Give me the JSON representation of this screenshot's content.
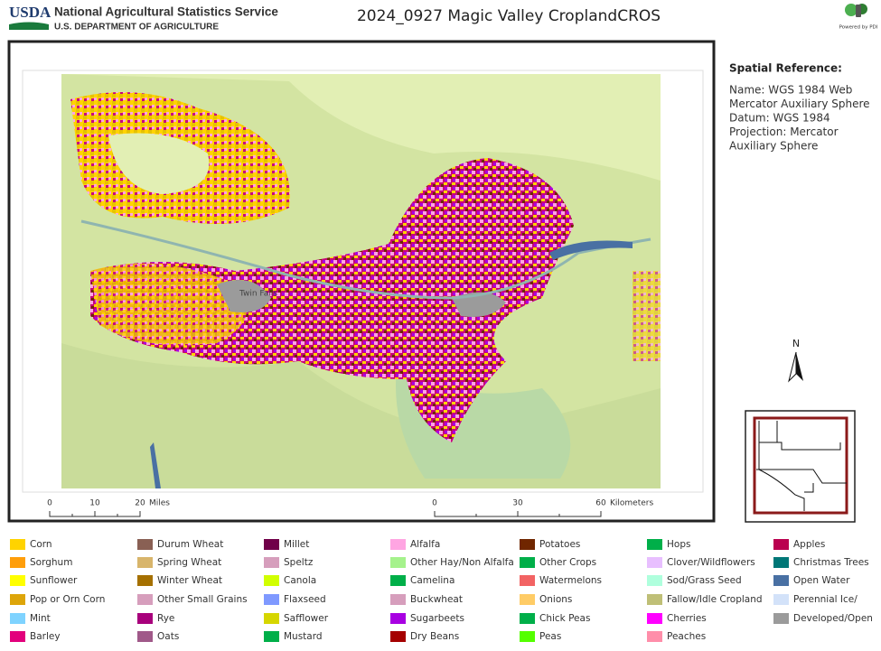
{
  "header": {
    "logo": "USDA",
    "agency": "National Agricultural Statistics Service",
    "department": "U.S. DEPARTMENT OF AGRICULTURE",
    "title": "2024_0927 Magic Valley CroplandCROS",
    "powered_by": "Powered by PDI"
  },
  "spatial_reference": {
    "heading": "Spatial Reference:",
    "lines": [
      "Name: WGS 1984 Web",
      "Mercator Auxiliary Sphere",
      "Datum: WGS 1984",
      "Projection: Mercator",
      "Auxiliary Sphere"
    ]
  },
  "map": {
    "place_label": "Twin Falls",
    "north": "N",
    "scale_miles": {
      "labels": [
        "0",
        "10",
        "20"
      ],
      "unit": "Miles"
    },
    "scale_km": {
      "labels": [
        "0",
        "30",
        "60"
      ],
      "unit": "Kilometers"
    }
  },
  "legend": {
    "columns": [
      [
        {
          "label": "Corn",
          "color": "#ffd300"
        },
        {
          "label": "Sorghum",
          "color": "#ff9e0a"
        },
        {
          "label": "Sunflower",
          "color": "#ffff00"
        },
        {
          "label": "Pop or Orn Corn",
          "color": "#dda50a"
        },
        {
          "label": "Mint",
          "color": "#7fd3ff"
        },
        {
          "label": "Barley",
          "color": "#e2007c"
        }
      ],
      [
        {
          "label": "Durum Wheat",
          "color": "#896054"
        },
        {
          "label": "Spring Wheat",
          "color": "#d8b56b"
        },
        {
          "label": "Winter Wheat",
          "color": "#a57000"
        },
        {
          "label": "Other Small Grains",
          "color": "#d69ebc"
        },
        {
          "label": "Rye",
          "color": "#a8007c"
        },
        {
          "label": "Oats",
          "color": "#a05989"
        }
      ],
      [
        {
          "label": "Millet",
          "color": "#700049"
        },
        {
          "label": "Speltz",
          "color": "#d69ebc"
        },
        {
          "label": "Canola",
          "color": "#d1ff00"
        },
        {
          "label": "Flaxseed",
          "color": "#7f99ff"
        },
        {
          "label": "Safflower",
          "color": "#d6d600"
        },
        {
          "label": "Mustard",
          "color": "#00af49"
        }
      ],
      [
        {
          "label": "Alfalfa",
          "color": "#ffa5e2"
        },
        {
          "label": "Other Hay/Non Alfalfa",
          "color": "#a5f28c"
        },
        {
          "label": "Camelina",
          "color": "#00af49"
        },
        {
          "label": "Buckwheat",
          "color": "#d69ebc"
        },
        {
          "label": "Sugarbeets",
          "color": "#a800e2"
        },
        {
          "label": "Dry Beans",
          "color": "#a50000"
        }
      ],
      [
        {
          "label": "Potatoes",
          "color": "#702600"
        },
        {
          "label": "Other Crops",
          "color": "#00af49"
        },
        {
          "label": "Watermelons",
          "color": "#f26363"
        },
        {
          "label": "Onions",
          "color": "#ffcc66"
        },
        {
          "label": "Chick Peas",
          "color": "#00af49"
        },
        {
          "label": "Peas",
          "color": "#54ff00"
        }
      ],
      [
        {
          "label": "Hops",
          "color": "#00af49"
        },
        {
          "label": "Clover/Wildflowers",
          "color": "#e8bfff"
        },
        {
          "label": "Sod/Grass Seed",
          "color": "#afffdd"
        },
        {
          "label": "Fallow/Idle Cropland",
          "color": "#bfbf77"
        },
        {
          "label": "Cherries",
          "color": "#ff00ff"
        },
        {
          "label": "Peaches",
          "color": "#ff8eaa"
        }
      ],
      [
        {
          "label": "Apples",
          "color": "#ba004f"
        },
        {
          "label": "Christmas Trees",
          "color": "#007777"
        },
        {
          "label": "Open Water",
          "color": "#4970a3"
        },
        {
          "label": "Perennial Ice/",
          "color": "#d3e2f9"
        },
        {
          "label": "Developed/Open",
          "color": "#9b9b9b"
        }
      ]
    ]
  }
}
